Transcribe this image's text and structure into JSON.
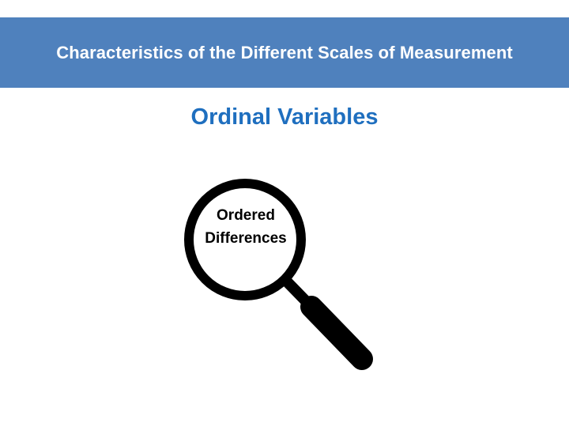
{
  "header": {
    "title": "Characteristics of the Different Scales of Measurement",
    "background_color": "#4f81bd"
  },
  "subtitle": {
    "text": "Ordinal Variables",
    "color": "#1f6fbf"
  },
  "magnifier": {
    "icon": "magnifying-glass-icon",
    "label_line1": "Ordered",
    "label_line2": "Differences"
  }
}
